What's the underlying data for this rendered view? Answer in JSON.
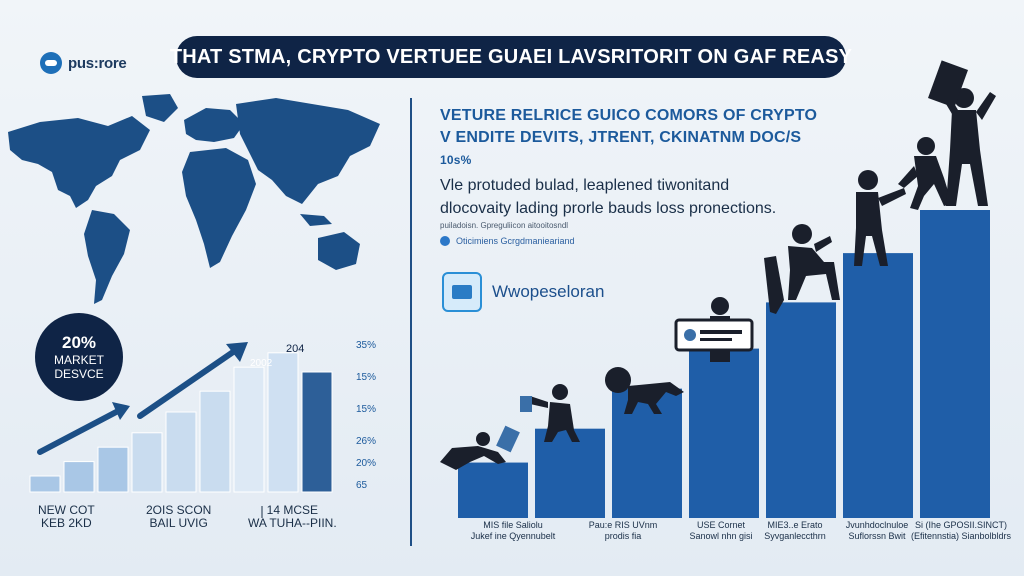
{
  "header": {
    "logo_text": "pus:rore",
    "title": "THAT STMA, CRYPTO VERTUEE GUAEI LAVSRITORIT ON GAF REASY"
  },
  "right_panel": {
    "heading_line1": "VETURE RELRICE GUICO COMORS OF CRYPTO",
    "heading_line2": "V ENDITE DEVITS, JTRENT, CKINATNM DOC/S",
    "heading_line3": "10s%",
    "description_line1": "Vle protuded bulad, leaplened tiwonitand",
    "description_line2": "dlocovaity lading prorle bauds loss pronections.",
    "source_small": "puiladoisn. Gpreguliicon aitooitosndl",
    "link_text": "Oticimiens Gcrgdmanieariand",
    "brand_name": "Wwopeseloran"
  },
  "badge": {
    "percent": "20%",
    "label_line1": "MARKET",
    "label_line2": "DESVCE"
  },
  "left_chart": {
    "top_labels": [
      "2002",
      "204"
    ],
    "y_ticks": [
      "35%",
      "15%",
      "15%",
      "26%",
      "20%",
      "65"
    ],
    "bottom_labels": [
      {
        "l1": "NEW COT",
        "l2": "KEB 2KD"
      },
      {
        "l1": "2OIS SCON",
        "l2": "BAIL UVIG"
      },
      {
        "l1": "14 MCSE",
        "l2": "WA TUHA--PIIN."
      }
    ],
    "bar_heights": [
      0.1,
      0.19,
      0.28,
      0.37,
      0.5,
      0.63,
      0.78,
      0.87,
      0.75
    ]
  },
  "steps": {
    "labels": [
      {
        "l1": "MIS file Saliolu",
        "l2": "Jukef ine Qyennubelt"
      },
      {
        "l1": "Pau:e RIS UVnm",
        "l2": "prodis fia"
      },
      {
        "l1": "USE Cornet",
        "l2": "Sanowl nhn gisi"
      },
      {
        "l1": "MIE3..e Erato",
        "l2": "Syvganleccthrn"
      },
      {
        "l1": "Jvunhdoclnuloe",
        "l2": "Suflorssn Bwit"
      },
      {
        "l1": "Si (Ihe GPOSII.SINCT)",
        "l2": "(Efitennstia) Sianbolbldrs"
      }
    ],
    "bar_heights": [
      0.18,
      0.29,
      0.42,
      0.55,
      0.7,
      0.86,
      1.0
    ]
  },
  "colors": {
    "navy": "#0f2446",
    "accent": "#1e6fb8",
    "map": "#1c4f86"
  }
}
